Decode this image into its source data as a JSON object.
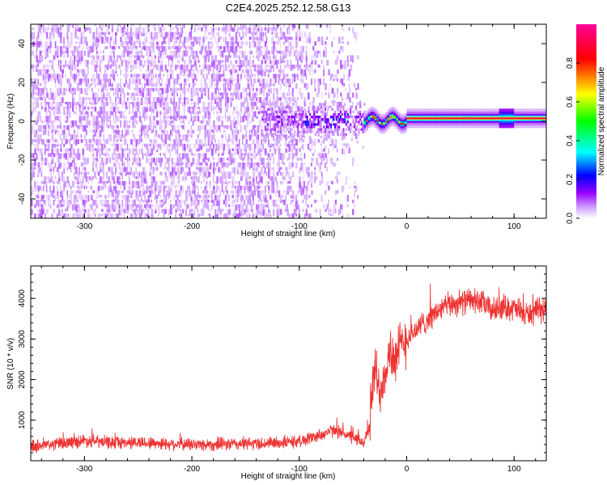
{
  "title": "C2E4.2025.252.12.58.G13",
  "chart_data": [
    {
      "type": "heatmap",
      "title": "C2E4.2025.252.12.58.G13",
      "xlabel": "Height of straight line (km)",
      "ylabel": "Frequency (Hz)",
      "xlim": [
        -350,
        130
      ],
      "ylim": [
        -50,
        50
      ],
      "xticks": [
        -300,
        -200,
        -100,
        0,
        100
      ],
      "yticks": [
        -40,
        -20,
        0,
        20,
        40
      ],
      "features": {
        "noise_region_km": [
          -350,
          -45
        ],
        "coherent_region_km": [
          -100,
          -40
        ],
        "signal_line_start_km": -40,
        "signal_line_freq_hz": 1.5
      },
      "colorbar": {
        "label": "Normalized spectral amplitude",
        "range": [
          0.0,
          1.0
        ],
        "ticks": [
          "0.0",
          "0.2",
          "0.4",
          "0.6",
          "0.8"
        ],
        "colors": [
          "#ffffff",
          "#cc99ff",
          "#9900ff",
          "#0000ff",
          "#00ffff",
          "#00ff00",
          "#ffff00",
          "#ff0000",
          "#ff0066"
        ]
      }
    },
    {
      "type": "line",
      "xlabel": "Height of straight line (km)",
      "ylabel": "SNR (10 * v/v)",
      "xlim": [
        -350,
        130
      ],
      "ylim": [
        0,
        4800
      ],
      "xticks": [
        -300,
        -200,
        -100,
        0,
        100
      ],
      "yticks": [
        1000,
        2000,
        3000,
        4000
      ],
      "color": "#ee3333",
      "series": [
        {
          "name": "SNR",
          "x": [
            -350,
            -330,
            -300,
            -280,
            -250,
            -220,
            -200,
            -180,
            -150,
            -130,
            -110,
            -100,
            -90,
            -80,
            -70,
            -60,
            -50,
            -40,
            -35,
            -30,
            -25,
            -20,
            -15,
            -10,
            -5,
            0,
            10,
            20,
            30,
            40,
            50,
            60,
            70,
            80,
            90,
            100,
            110,
            120,
            130
          ],
          "values": [
            350,
            400,
            500,
            450,
            450,
            420,
            400,
            400,
            420,
            430,
            460,
            480,
            560,
            640,
            740,
            700,
            560,
            450,
            800,
            2300,
            1700,
            2300,
            2700,
            2500,
            2850,
            3000,
            3250,
            3500,
            3700,
            3850,
            3900,
            3950,
            3900,
            3700,
            3800,
            3750,
            3600,
            3650,
            3750
          ]
        }
      ]
    }
  ]
}
